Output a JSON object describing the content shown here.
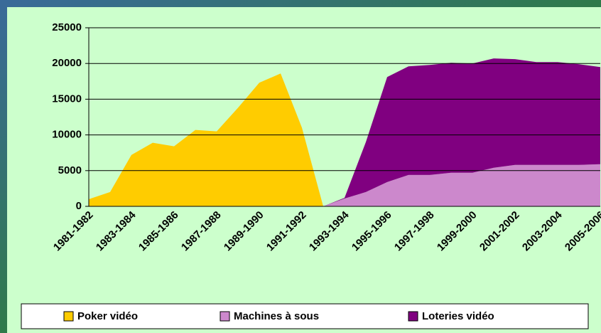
{
  "chart_data": {
    "type": "stacked-area",
    "categories": [
      "1981-1982",
      null,
      "1983-1984",
      null,
      "1985-1986",
      null,
      "1987-1988",
      null,
      "1989-1990",
      null,
      "1991-1992",
      null,
      "1993-1994",
      null,
      "1995-1996",
      null,
      "1997-1998",
      null,
      "1999-2000",
      null,
      "2001-2002",
      null,
      "2003-2004",
      null,
      "2005-2006"
    ],
    "series": [
      {
        "name": "Poker vidéo",
        "color": "#ffcc00",
        "values": [
          1000,
          2000,
          7200,
          8900,
          8400,
          10700,
          10500,
          13800,
          17300,
          18600,
          11000,
          0,
          0,
          0,
          0,
          0,
          0,
          0,
          0,
          0,
          0,
          0,
          0,
          0,
          0
        ]
      },
      {
        "name": "Machines à sous",
        "color": "#cc88cc",
        "values": [
          0,
          0,
          0,
          0,
          0,
          0,
          0,
          0,
          0,
          0,
          0,
          0,
          1100,
          2000,
          3400,
          4400,
          4400,
          4700,
          4700,
          5400,
          5800,
          5800,
          5800,
          5800,
          5900
        ]
      },
      {
        "name": "Loteries vidéo",
        "color": "#800080",
        "values": [
          0,
          0,
          0,
          0,
          0,
          0,
          0,
          0,
          0,
          0,
          0,
          0,
          100,
          7000,
          14700,
          15200,
          15400,
          15400,
          15300,
          15300,
          14800,
          14400,
          14400,
          14100,
          13600
        ]
      }
    ],
    "ylim": [
      0,
      25000
    ],
    "yticks": [
      0,
      5000,
      10000,
      15000,
      20000,
      25000
    ],
    "grid": true,
    "legend": "bottom"
  }
}
